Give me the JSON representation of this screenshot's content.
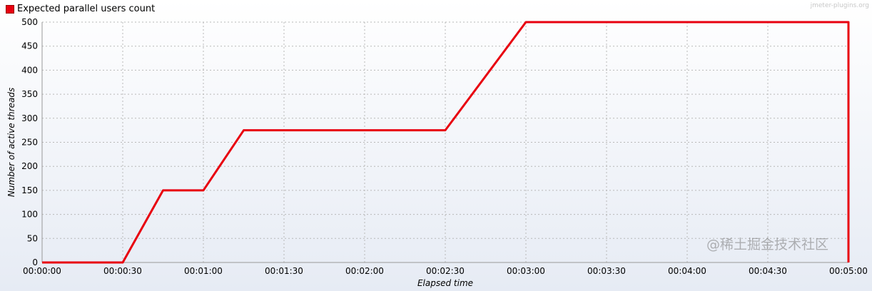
{
  "chart_data": {
    "type": "line",
    "title": "",
    "xlabel": "Elapsed time",
    "ylabel": "Number of active threads",
    "xlim": [
      0,
      300
    ],
    "ylim": [
      0,
      500
    ],
    "grid": true,
    "legend_placement": "top-left",
    "x_ticks": [
      "00:00:00",
      "00:00:30",
      "00:01:00",
      "00:01:30",
      "00:02:00",
      "00:02:30",
      "00:03:00",
      "00:03:30",
      "00:04:00",
      "00:04:30",
      "00:05:00"
    ],
    "y_ticks": [
      "0",
      "50",
      "100",
      "150",
      "200",
      "250",
      "300",
      "350",
      "400",
      "450",
      "500"
    ],
    "series": [
      {
        "name": "Expected parallel users count",
        "color": "#e8000f",
        "x_seconds": [
          0,
          30,
          45,
          60,
          75,
          150,
          180,
          300,
          300
        ],
        "y": [
          0,
          0,
          150,
          150,
          275,
          275,
          500,
          500,
          0
        ]
      }
    ]
  },
  "credit": "jmeter-plugins.org",
  "watermark": "@稀土掘金技术社区"
}
